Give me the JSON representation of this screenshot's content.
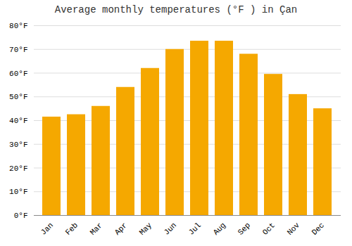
{
  "chart_data": {
    "type": "bar",
    "title": "Average monthly temperatures (°F ) in Çan",
    "categories": [
      "Jan",
      "Feb",
      "Mar",
      "Apr",
      "May",
      "Jun",
      "Jul",
      "Aug",
      "Sep",
      "Oct",
      "Nov",
      "Dec"
    ],
    "values": [
      41.5,
      42.5,
      46.0,
      54.0,
      62.0,
      70.0,
      73.5,
      73.5,
      68.0,
      59.5,
      51.0,
      45.0
    ],
    "color": "#F5A800",
    "ylim": [
      0,
      80
    ],
    "yticks": [
      {
        "value": 0,
        "label": "0°F"
      },
      {
        "value": 10,
        "label": "10°F"
      },
      {
        "value": 20,
        "label": "20°F"
      },
      {
        "value": 30,
        "label": "30°F"
      },
      {
        "value": 40,
        "label": "40°F"
      },
      {
        "value": 50,
        "label": "50°F"
      },
      {
        "value": 60,
        "label": "60°F"
      },
      {
        "value": 70,
        "label": "70°F"
      },
      {
        "value": 80,
        "label": "80°F"
      }
    ],
    "grid": true
  }
}
